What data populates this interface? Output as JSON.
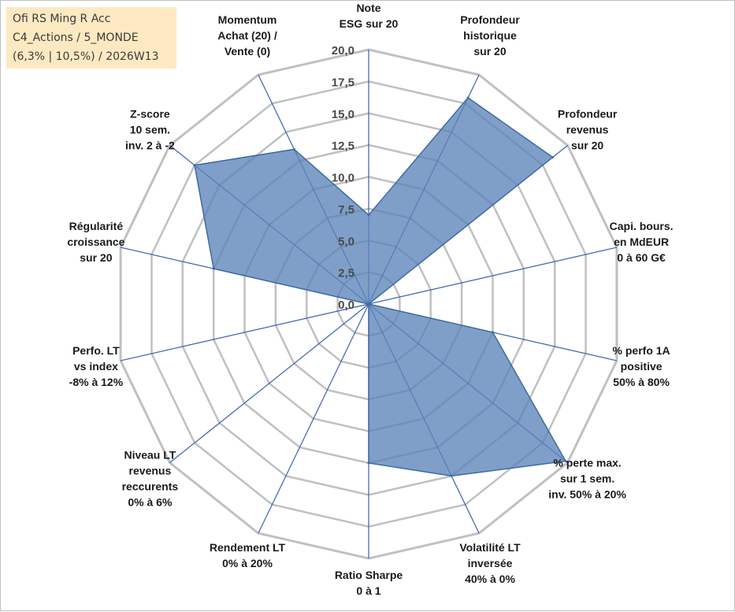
{
  "title_box": {
    "line1": "Ofi RS Ming R Acc",
    "line2": "C4_Actions / 5_MONDE",
    "line3": "(6,3% | 10,5%) / 2026W13"
  },
  "chart_data": {
    "type": "radar",
    "title": "Ofi RS Ming R Acc",
    "rlim": [
      0,
      20
    ],
    "ticks": [
      0,
      2.5,
      5,
      7.5,
      10,
      12.5,
      15,
      17.5,
      20
    ],
    "tick_labels": [
      "0,0",
      "2,5",
      "5,0",
      "7,5",
      "10,0",
      "12,5",
      "15,0",
      "17,5",
      "20,0"
    ],
    "grid": true,
    "axes": [
      {
        "name": "Note ESG sur 20",
        "lines": [
          "Note",
          "ESG sur 20"
        ]
      },
      {
        "name": "Profondeur historique sur 20",
        "lines": [
          "Profondeur",
          "historique",
          "sur 20"
        ]
      },
      {
        "name": "Profondeur revenus sur 20",
        "lines": [
          "Profondeur",
          "revenus",
          "sur 20"
        ]
      },
      {
        "name": "Capi. bours. en MdEUR 0 à 60 G€",
        "lines": [
          "Capi. bours.",
          "en MdEUR",
          "0 à 60 G€"
        ]
      },
      {
        "name": "% perfo 1A positive 50% à 80%",
        "lines": [
          "% perfo 1A",
          "positive",
          "50% à 80%"
        ]
      },
      {
        "name": "% perte max. sur 1 sem. inv. 50% à 20%",
        "lines": [
          "% perte max.",
          "sur 1 sem.",
          "inv. 50% à 20%"
        ]
      },
      {
        "name": "Volatilité LT inversée 40% à 0%",
        "lines": [
          "Volatilité LT",
          "inversée",
          "40% à 0%"
        ]
      },
      {
        "name": "Ratio Sharpe 0 à 1",
        "lines": [
          "Ratio Sharpe",
          "0 à 1"
        ]
      },
      {
        "name": "Rendement LT 0% à 20%",
        "lines": [
          "Rendement LT",
          "0% à 20%"
        ]
      },
      {
        "name": "Niveau LT revenus reccurents 0% à 6%",
        "lines": [
          "Niveau LT",
          "revenus",
          "reccurents",
          "0% à 6%"
        ]
      },
      {
        "name": "Perfo. LT vs index -8% à 12%",
        "lines": [
          "Perfo. LT",
          "vs index",
          "-8% à 12%"
        ]
      },
      {
        "name": "Régularité croissance sur 20",
        "lines": [
          "Régularité",
          "croissance",
          "sur 20"
        ]
      },
      {
        "name": "Z-score 10 sem. inv. 2 à -2",
        "lines": [
          "Z-score",
          "10 sem.",
          "inv. 2 à -2"
        ]
      },
      {
        "name": "Momentum Achat (20) / Vente (0)",
        "lines": [
          "Momentum",
          "Achat (20) /",
          "Vente (0)"
        ]
      }
    ],
    "series": [
      {
        "name": "Ofi RS Ming R Acc",
        "values": [
          7.0,
          18.0,
          18.5,
          0.0,
          10.0,
          19.8,
          15.0,
          12.5,
          0.0,
          0.0,
          0.0,
          12.5,
          17.5,
          13.5
        ],
        "fill": "#5b84b8",
        "stroke": "#3f6aa3"
      }
    ],
    "colors": {
      "grid": "#c0c0c0",
      "spokes": "#3a62b0",
      "fill": "#5b84b8"
    }
  }
}
